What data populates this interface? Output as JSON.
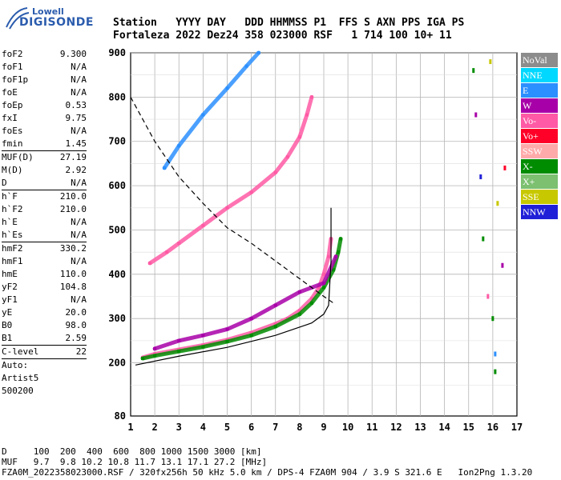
{
  "logo": {
    "line1": "Lowell",
    "line2": "DIGISONDE"
  },
  "header": {
    "line1": "Station   YYYY DAY   DDD HHMMSS P1  FFS S AXN PPS IGA PS",
    "line2": "Fortaleza 2022 Dez24 358 023000 RSF   1 714 100 10+ 11"
  },
  "params": {
    "group1": [
      {
        "k": "foF2",
        "v": "9.300"
      },
      {
        "k": "foF1",
        "v": "N/A"
      },
      {
        "k": "foF1p",
        "v": "N/A"
      },
      {
        "k": "foE",
        "v": "N/A"
      },
      {
        "k": "foEp",
        "v": "0.53"
      },
      {
        "k": "fxI",
        "v": "9.75"
      },
      {
        "k": "foEs",
        "v": "N/A"
      },
      {
        "k": "fmin",
        "v": "1.45"
      }
    ],
    "group2": [
      {
        "k": "MUF(D)",
        "v": "27.19"
      },
      {
        "k": "M(D)",
        "v": "2.92"
      },
      {
        "k": "D",
        "v": "N/A"
      }
    ],
    "group3": [
      {
        "k": "h`F",
        "v": "210.0"
      },
      {
        "k": "h`F2",
        "v": "210.0"
      },
      {
        "k": "h`E",
        "v": "N/A"
      },
      {
        "k": "h`Es",
        "v": "N/A"
      }
    ],
    "group4": [
      {
        "k": "hmF2",
        "v": "330.2"
      },
      {
        "k": "hmF1",
        "v": "N/A"
      },
      {
        "k": "hmE",
        "v": "110.0"
      },
      {
        "k": "yF2",
        "v": "104.8"
      },
      {
        "k": "yF1",
        "v": "N/A"
      },
      {
        "k": "yE",
        "v": "20.0"
      },
      {
        "k": "B0",
        "v": "98.0"
      },
      {
        "k": "B1",
        "v": "2.59"
      }
    ],
    "clevel": {
      "k": "C-level",
      "v": "22"
    },
    "auto": [
      "Auto:",
      "Artist5",
      "500200"
    ]
  },
  "legend": [
    {
      "label": "NoVal",
      "color": "#8c8c8c"
    },
    {
      "label": "NNE",
      "color": "#00d8ff"
    },
    {
      "label": "E",
      "color": "#2b8fff"
    },
    {
      "label": "W",
      "color": "#a800a8"
    },
    {
      "label": "Vo-",
      "color": "#ff5aa5"
    },
    {
      "label": "Vo+",
      "color": "#ff0028"
    },
    {
      "label": "SSW",
      "color": "#ffaaaa"
    },
    {
      "label": "X-",
      "color": "#008c00"
    },
    {
      "label": "X+",
      "color": "#7cc070"
    },
    {
      "label": "SSE",
      "color": "#c8c800"
    },
    {
      "label": "NNW",
      "color": "#2020d8"
    }
  ],
  "bottom": {
    "line1": "D     100  200  400  600  800 1000 1500 3000 [km]",
    "line2": "MUF   9.7  9.8 10.2 10.8 11.7 13.1 17.1 27.2 [MHz]",
    "line3": "FZA0M_2022358023000.RSF / 320fx256h 50 kHz 5.0 km / DPS-4 FZA0M 904 / 3.9 S 321.6 E   Ion2Png 1.3.20"
  },
  "chart_data": {
    "type": "scatter",
    "x": {
      "ticks": [
        1,
        2,
        3,
        4,
        5,
        6,
        7,
        8,
        9,
        10,
        11,
        12,
        13,
        14,
        15,
        16,
        17
      ],
      "range": [
        1,
        17
      ]
    },
    "y": {
      "ticks": [
        200,
        300,
        400,
        500,
        600,
        700,
        800,
        900
      ],
      "bottom_label": "80",
      "range": [
        80,
        900
      ]
    },
    "grid": true,
    "series": [
      {
        "trace": "F2 ordinary trace",
        "color": "#ff5aa5",
        "points": [
          [
            1.5,
            212
          ],
          [
            2,
            220
          ],
          [
            3,
            230
          ],
          [
            4,
            240
          ],
          [
            5,
            252
          ],
          [
            6,
            268
          ],
          [
            7,
            288
          ],
          [
            7.5,
            300
          ],
          [
            8,
            318
          ],
          [
            8.5,
            345
          ],
          [
            8.8,
            370
          ],
          [
            9,
            400
          ],
          [
            9.2,
            440
          ],
          [
            9.3,
            480
          ]
        ]
      },
      {
        "trace": "F2 extraordinary trace",
        "color": "#008c00",
        "points": [
          [
            1.5,
            210
          ],
          [
            2,
            216
          ],
          [
            3,
            226
          ],
          [
            4,
            236
          ],
          [
            5,
            248
          ],
          [
            6,
            262
          ],
          [
            7,
            282
          ],
          [
            8,
            310
          ],
          [
            8.5,
            335
          ],
          [
            9,
            370
          ],
          [
            9.4,
            410
          ],
          [
            9.6,
            450
          ],
          [
            9.7,
            480
          ]
        ]
      },
      {
        "trace": "second hop",
        "color": "#ff5aa5",
        "points": [
          [
            1.8,
            425
          ],
          [
            2.5,
            450
          ],
          [
            3,
            470
          ],
          [
            4,
            510
          ],
          [
            5,
            550
          ],
          [
            6,
            585
          ],
          [
            7,
            630
          ],
          [
            7.5,
            665
          ],
          [
            8,
            710
          ],
          [
            8.3,
            760
          ],
          [
            8.5,
            800
          ]
        ]
      },
      {
        "trace": "third hop",
        "color": "#2b8fff",
        "points": [
          [
            2.4,
            640
          ],
          [
            3,
            690
          ],
          [
            4,
            760
          ],
          [
            5,
            820
          ],
          [
            5.8,
            870
          ],
          [
            6.3,
            900
          ]
        ]
      },
      {
        "trace": "oblique spread",
        "color": "#a800a8",
        "points": [
          [
            2,
            232
          ],
          [
            3,
            250
          ],
          [
            4,
            262
          ],
          [
            5,
            276
          ],
          [
            6,
            300
          ],
          [
            7,
            330
          ],
          [
            8,
            360
          ],
          [
            9,
            380
          ],
          [
            9.5,
            440
          ]
        ]
      },
      {
        "trace": "virtual height profile",
        "color": "#000000",
        "points": [
          [
            1.2,
            195
          ],
          [
            3,
            215
          ],
          [
            5,
            235
          ],
          [
            7,
            262
          ],
          [
            8.5,
            290
          ],
          [
            9,
            310
          ],
          [
            9.2,
            330
          ],
          [
            9.25,
            380
          ],
          [
            9.3,
            430
          ],
          [
            9.3,
            550
          ]
        ]
      },
      {
        "trace": "MUF curve",
        "color": "#000000",
        "dashed": true,
        "points": [
          [
            1,
            800
          ],
          [
            2,
            700
          ],
          [
            3,
            620
          ],
          [
            4,
            560
          ],
          [
            5,
            505
          ],
          [
            6,
            470
          ],
          [
            7,
            430
          ],
          [
            8,
            390
          ],
          [
            9,
            350
          ],
          [
            9.4,
            335
          ]
        ]
      }
    ]
  }
}
